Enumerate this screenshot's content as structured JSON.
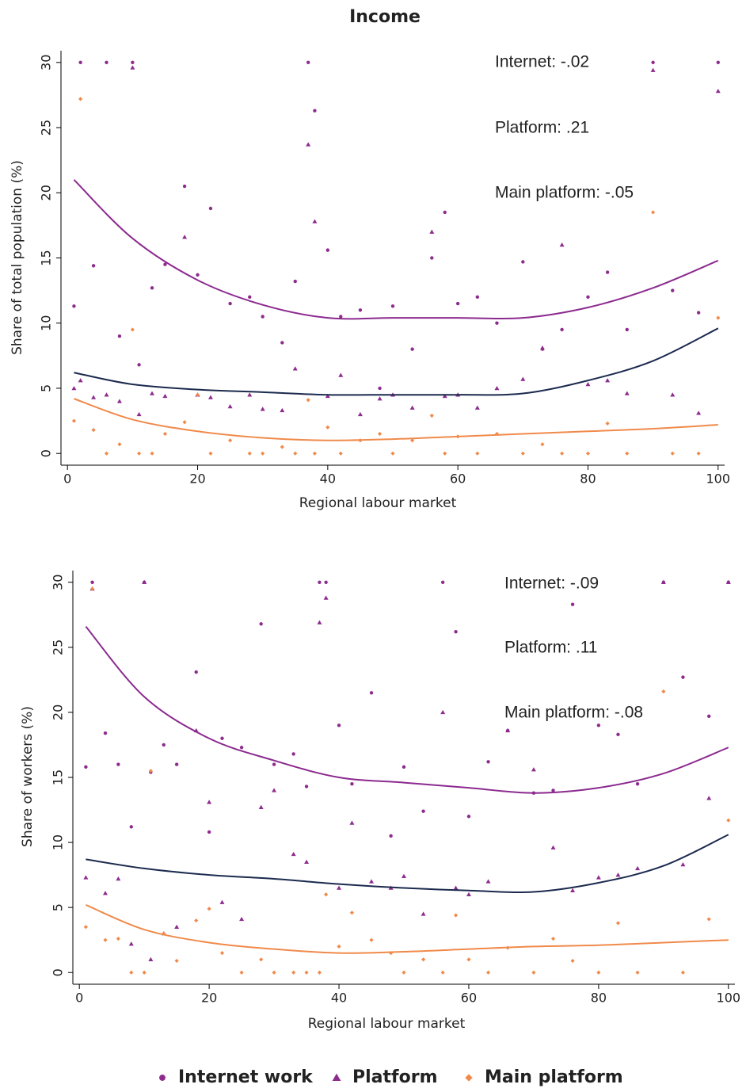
{
  "chart_data": [
    {
      "type": "scatter",
      "title": "Income",
      "x_label": "Regional labour market",
      "y_label": "Share of total population (%)",
      "annotations": [
        "Internet: -.02",
        "Platform: .21",
        "Main platform: -.05"
      ],
      "xlim": [
        -1,
        101
      ],
      "ylim": [
        -0.9,
        30.9
      ],
      "xticks": [
        0,
        20,
        40,
        60,
        80,
        100
      ],
      "yticks": [
        0,
        5,
        10,
        15,
        20,
        25,
        30
      ],
      "x": [
        1,
        2,
        4,
        6,
        8,
        10,
        11,
        13,
        15,
        18,
        20,
        22,
        25,
        28,
        30,
        33,
        35,
        37,
        38,
        40,
        42,
        45,
        48,
        50,
        53,
        56,
        58,
        60,
        63,
        66,
        70,
        73,
        76,
        80,
        83,
        86,
        90,
        93,
        97,
        100
      ],
      "series": [
        {
          "name": "Internet work",
          "color": "#8e2c8e",
          "marker": "circle",
          "values": [
            11.3,
            30,
            14.4,
            30,
            9,
            30,
            6.8,
            12.7,
            14.5,
            20.5,
            13.7,
            18.8,
            11.5,
            12,
            10.5,
            8.5,
            13.2,
            30,
            26.3,
            15.6,
            10.5,
            11,
            5,
            11.3,
            8,
            15,
            18.5,
            11.5,
            12,
            10,
            14.7,
            8,
            9.5,
            12,
            13.9,
            9.5,
            30,
            12.5,
            10.8,
            30
          ]
        },
        {
          "name": "Platform",
          "color": "#8e2c8e",
          "marker": "triangle",
          "values": [
            5,
            5.6,
            4.3,
            4.5,
            4,
            29.6,
            3,
            4.6,
            4.4,
            16.6,
            4.5,
            4.3,
            3.6,
            4.5,
            3.4,
            3.3,
            6.5,
            23.7,
            17.8,
            4.4,
            6,
            3,
            4.2,
            4.5,
            3.5,
            17,
            4.4,
            4.5,
            3.5,
            5,
            5.7,
            8.1,
            16,
            5.3,
            5.6,
            4.6,
            29.4,
            4.5,
            3.1,
            27.8
          ]
        },
        {
          "name": "Main platform",
          "color": "#f08a4b",
          "marker": "diamond",
          "values": [
            2.5,
            27.2,
            1.8,
            0,
            0.7,
            9.5,
            0,
            0,
            1.5,
            2.4,
            4.5,
            0,
            1,
            0,
            0,
            0.5,
            0,
            4.1,
            0,
            2,
            0,
            1,
            1.5,
            0,
            1,
            2.9,
            0,
            1.3,
            0,
            1.5,
            0,
            0.7,
            0,
            0,
            2.3,
            0,
            18.5,
            0,
            0,
            10.4
          ]
        }
      ],
      "fit_x": [
        1,
        10,
        20,
        30,
        40,
        50,
        60,
        70,
        80,
        90,
        100
      ],
      "fits": [
        {
          "color": "#8b2a8f",
          "values": [
            21,
            16.5,
            13.3,
            11.4,
            10.4,
            10.4,
            10.4,
            10.4,
            11.2,
            12.7,
            14.8
          ]
        },
        {
          "color": "#1b2a4e",
          "values": [
            6.2,
            5.3,
            4.9,
            4.7,
            4.5,
            4.5,
            4.5,
            4.6,
            5.6,
            7.1,
            9.6
          ]
        },
        {
          "color": "#f08a4b",
          "values": [
            4.2,
            2.6,
            1.7,
            1.2,
            1,
            1.1,
            1.3,
            1.5,
            1.7,
            1.9,
            2.2
          ]
        }
      ]
    },
    {
      "type": "scatter",
      "x_label": "Regional labour market",
      "y_label": "Share of workers (%)",
      "annotations": [
        "Internet: -.09",
        "Platform: .11",
        "Main platform: -.08"
      ],
      "xlim": [
        -1,
        101
      ],
      "ylim": [
        -0.9,
        30.9
      ],
      "xticks": [
        0,
        20,
        40,
        60,
        80,
        100
      ],
      "yticks": [
        0,
        5,
        10,
        15,
        20,
        25,
        30
      ],
      "x": [
        1,
        2,
        4,
        6,
        8,
        10,
        11,
        13,
        15,
        18,
        20,
        22,
        25,
        28,
        30,
        33,
        35,
        37,
        38,
        40,
        42,
        45,
        48,
        50,
        53,
        56,
        58,
        60,
        63,
        66,
        70,
        73,
        76,
        80,
        83,
        86,
        90,
        93,
        97,
        100
      ],
      "series": [
        {
          "color": "#8e2c8e",
          "marker": "circle",
          "values": [
            15.8,
            30,
            18.4,
            16,
            11.2,
            30,
            15.4,
            17.5,
            16,
            23.1,
            10.8,
            18,
            17.3,
            26.8,
            16,
            16.8,
            14.3,
            30,
            30,
            19,
            14.5,
            21.5,
            10.5,
            15.8,
            12.4,
            30,
            26.2,
            12,
            16.2,
            18.6,
            13.8,
            14,
            28.3,
            19,
            18.3,
            14.5,
            30,
            22.7,
            19.7,
            30
          ]
        },
        {
          "color": "#8e2c8e",
          "marker": "triangle",
          "values": [
            7.3,
            29.5,
            6.1,
            7.2,
            2.2,
            30,
            1,
            3,
            3.5,
            18.6,
            13.1,
            5.4,
            4.1,
            12.7,
            14,
            9.1,
            8.5,
            26.9,
            28.8,
            6.5,
            11.5,
            7,
            6.5,
            7.4,
            4.5,
            20,
            6.5,
            6,
            7,
            18.6,
            15.6,
            9.6,
            6.3,
            7.3,
            7.5,
            8,
            30,
            8.3,
            13.4,
            30
          ]
        },
        {
          "color": "#f08a4b",
          "marker": "diamond",
          "values": [
            3.5,
            29.5,
            2.5,
            2.6,
            0,
            0,
            15.5,
            3,
            0.9,
            4,
            4.9,
            1.5,
            0,
            1,
            0,
            0,
            0,
            0,
            6,
            2,
            4.6,
            2.5,
            1.5,
            0,
            1,
            0,
            4.4,
            1,
            0,
            1.9,
            0,
            2.6,
            0.9,
            0,
            3.8,
            0,
            21.6,
            0,
            4.1,
            11.7
          ]
        }
      ],
      "fit_x": [
        1,
        10,
        20,
        30,
        40,
        50,
        60,
        70,
        80,
        90,
        100
      ],
      "fits": [
        {
          "color": "#8b2a8f",
          "values": [
            26.6,
            21.2,
            18,
            16.3,
            15,
            14.6,
            14.2,
            13.8,
            14.2,
            15.3,
            17.3
          ]
        },
        {
          "color": "#1b2a4e",
          "values": [
            8.7,
            8,
            7.5,
            7.2,
            6.8,
            6.5,
            6.3,
            6.2,
            6.9,
            8.2,
            10.6
          ]
        },
        {
          "color": "#f08a4b",
          "values": [
            5.2,
            3.3,
            2.3,
            1.8,
            1.5,
            1.6,
            1.8,
            2,
            2.1,
            2.3,
            2.5
          ]
        }
      ]
    }
  ]
}
